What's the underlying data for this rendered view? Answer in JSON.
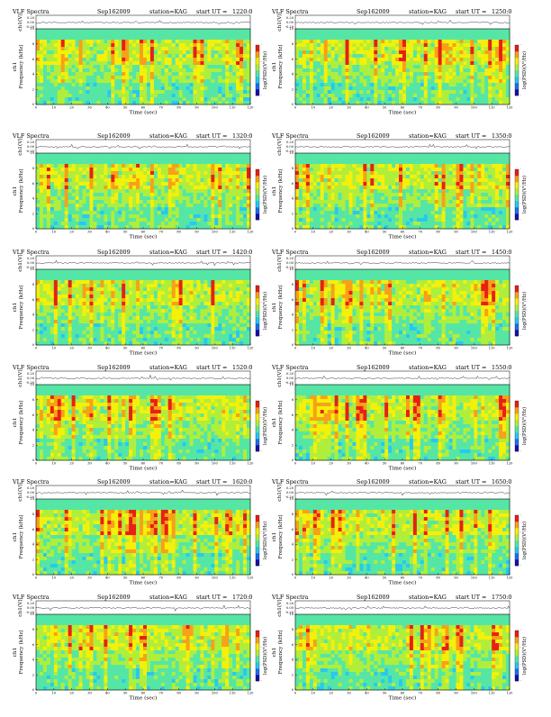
{
  "figure": {
    "rows": 6,
    "cols": 2,
    "header_labels": {
      "title": "VLF Spectra",
      "date": "Sep162009",
      "station": "station=KAG",
      "start_prefix": "start  UT  ="
    },
    "panels": [
      {
        "start": "1220:0"
      },
      {
        "start": "1250:0"
      },
      {
        "start": "1320:0"
      },
      {
        "start": "1350:0"
      },
      {
        "start": "1420:0"
      },
      {
        "start": "1450:0"
      },
      {
        "start": "1520:0"
      },
      {
        "start": "1550:0"
      },
      {
        "start": "1620:0"
      },
      {
        "start": "1650:0"
      },
      {
        "start": "1720:0"
      },
      {
        "start": "1750:0"
      }
    ],
    "amp_ylabel": "ch1(V)",
    "amp_ticks": [
      "0.20",
      "0.00",
      "-0.20"
    ],
    "spec_ylabel_line1": "ch1",
    "spec_ylabel_line2": "Frequency (kHz)",
    "freq_ticks": [
      "0",
      "2",
      "4",
      "6",
      "8",
      "10"
    ],
    "time_ticks": [
      "0",
      "10",
      "20",
      "30",
      "40",
      "50",
      "60",
      "70",
      "80",
      "90",
      "100",
      "110",
      "120"
    ],
    "xlabel": "Time (sec)",
    "colorbar_label": "log(PSD)(V²/Hz)",
    "colorbar_ticks": [
      "-",
      "-",
      "-",
      "-"
    ]
  },
  "chart_data": {
    "type": "heatmap",
    "description_free": true,
    "x_unit": "sec",
    "xlim": [
      0,
      120
    ],
    "ylim": [
      0,
      10
    ],
    "y_unit": "kHz",
    "amplitude_ylim": [
      -0.2,
      0.2
    ],
    "colormap": [
      "#1a10a8",
      "#1e6ef0",
      "#28c8f0",
      "#55e6a6",
      "#b0ee3c",
      "#f4f00a",
      "#f8a018",
      "#e82014"
    ],
    "colors": {
      "saturated_band": "#2ee6e6",
      "low_band": "#48e8b2",
      "mid_band": "#9ef04a",
      "hot": "#e42a1a"
    }
  }
}
